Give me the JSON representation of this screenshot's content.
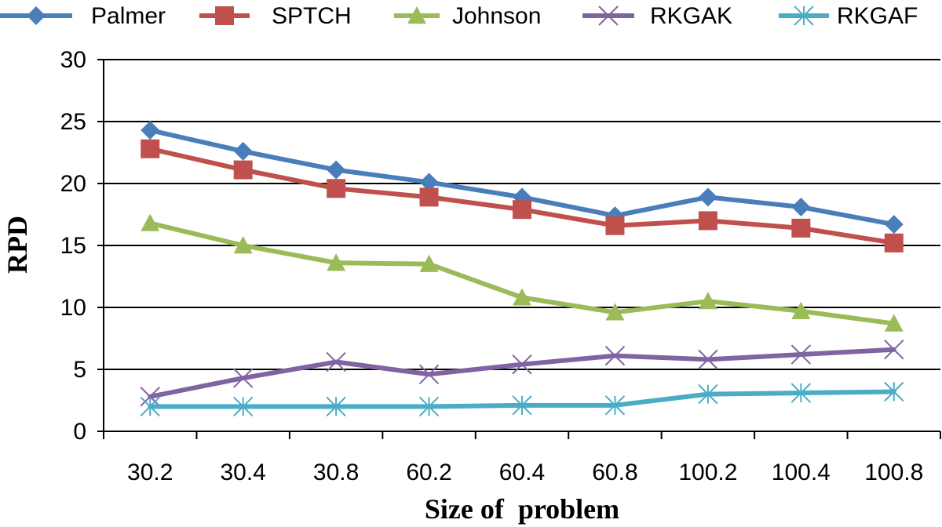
{
  "chart_data": {
    "type": "line",
    "title": "",
    "xlabel": "Size of  problem",
    "ylabel": "RPD",
    "categories": [
      "30.2",
      "30.4",
      "30.8",
      "60.2",
      "60.4",
      "60.8",
      "100.2",
      "100.4",
      "100.8"
    ],
    "ylim": [
      0,
      30
    ],
    "yticks": [
      0,
      5,
      10,
      15,
      20,
      25,
      30
    ],
    "grid": true,
    "legend_position": "top",
    "series": [
      {
        "name": "Palmer",
        "color": "#4a7ebb",
        "marker": "diamond",
        "values": [
          24.3,
          22.6,
          21.1,
          20.1,
          18.9,
          17.4,
          18.9,
          18.1,
          16.7
        ]
      },
      {
        "name": "SPTCH",
        "color": "#c0504d",
        "marker": "square",
        "values": [
          22.8,
          21.1,
          19.6,
          18.9,
          17.9,
          16.6,
          17.0,
          16.4,
          15.2
        ]
      },
      {
        "name": "Johnson",
        "color": "#9bbb59",
        "marker": "triangle",
        "values": [
          16.8,
          15.0,
          13.6,
          13.5,
          10.8,
          9.6,
          10.5,
          9.7,
          8.7
        ]
      },
      {
        "name": "RKGAK",
        "color": "#8064a2",
        "marker": "x",
        "values": [
          2.8,
          4.3,
          5.6,
          4.6,
          5.4,
          6.1,
          5.8,
          6.2,
          6.6
        ]
      },
      {
        "name": "RKGAF",
        "color": "#4bacc6",
        "marker": "star",
        "values": [
          2.0,
          2.0,
          2.0,
          2.0,
          2.1,
          2.1,
          3.0,
          3.1,
          3.2
        ]
      }
    ]
  }
}
